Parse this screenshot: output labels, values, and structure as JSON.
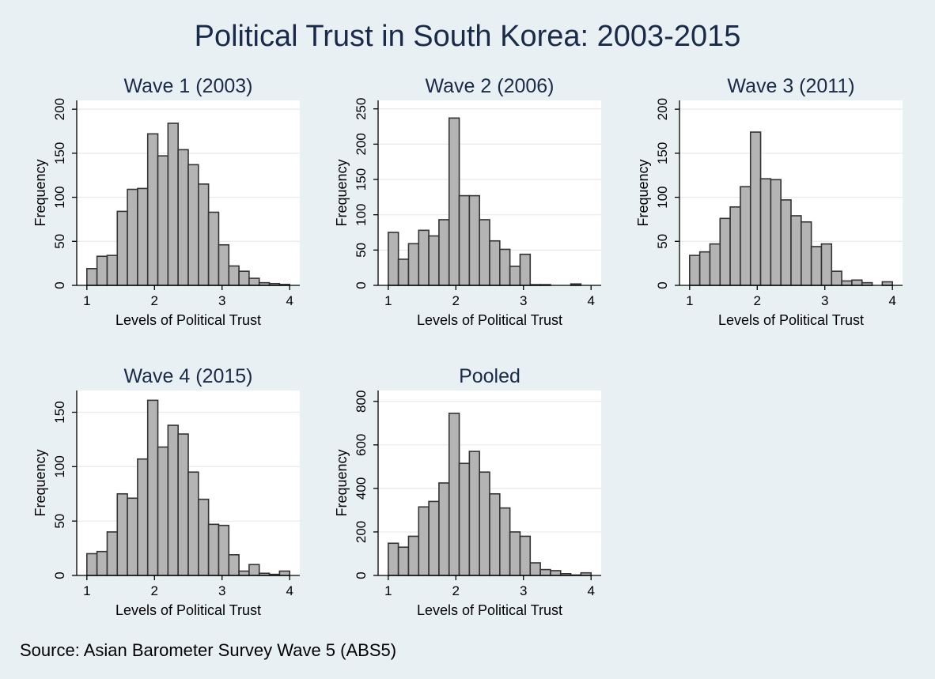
{
  "figure": {
    "title": "Political Trust in South Korea: 2003-2015",
    "source": "Source: Asian Barometer Survey Wave 5 (ABS5)"
  },
  "colors": {
    "background": "#e9f0f3",
    "plot_background": "#ffffff",
    "bar_fill": "#b4b4b4",
    "bar_edge": "#333333",
    "title": "#1a2a4a"
  },
  "chart_data": [
    {
      "type": "bar",
      "id": "w1",
      "title": "Wave 1 (2003)",
      "xlabel": "Levels of Political Trust",
      "ylabel": "Frequency",
      "xlim": [
        0.85,
        4.15
      ],
      "ylim": [
        0,
        210
      ],
      "xticks": [
        1,
        2,
        3,
        4
      ],
      "yticks": [
        0,
        50,
        100,
        150,
        200
      ],
      "bin_start": 1.0,
      "bin_width": 0.15,
      "grid": true,
      "values": [
        19,
        33,
        34,
        84,
        109,
        110,
        172,
        147,
        184,
        154,
        137,
        115,
        83,
        46,
        22,
        16,
        8,
        3,
        2,
        1
      ]
    },
    {
      "type": "bar",
      "id": "w2",
      "title": "Wave 2 (2006)",
      "xlabel": "Levels of Political Trust",
      "ylabel": "Frequency",
      "xlim": [
        0.85,
        4.15
      ],
      "ylim": [
        0,
        262
      ],
      "xticks": [
        1,
        2,
        3,
        4
      ],
      "yticks": [
        0,
        50,
        100,
        150,
        200,
        250
      ],
      "bin_start": 1.0,
      "bin_width": 0.15,
      "grid": true,
      "values": [
        75,
        37,
        59,
        78,
        70,
        93,
        237,
        127,
        127,
        93,
        63,
        51,
        27,
        44,
        1,
        1,
        0,
        0,
        2,
        0
      ]
    },
    {
      "type": "bar",
      "id": "w3",
      "title": "Wave 3 (2011)",
      "xlabel": "Levels of Political Trust",
      "ylabel": "Frequency",
      "xlim": [
        0.85,
        4.15
      ],
      "ylim": [
        0,
        210
      ],
      "xticks": [
        1,
        2,
        3,
        4
      ],
      "yticks": [
        0,
        50,
        100,
        150,
        200
      ],
      "bin_start": 1.0,
      "bin_width": 0.15,
      "grid": true,
      "values": [
        34,
        38,
        47,
        76,
        89,
        112,
        174,
        121,
        120,
        97,
        79,
        72,
        44,
        47,
        16,
        5,
        6,
        3,
        0,
        4
      ]
    },
    {
      "type": "bar",
      "id": "w4",
      "title": "Wave 4 (2015)",
      "xlabel": "Levels of Political Trust",
      "ylabel": "Frequency",
      "xlim": [
        0.85,
        4.15
      ],
      "ylim": [
        0,
        170
      ],
      "xticks": [
        1,
        2,
        3,
        4
      ],
      "yticks": [
        0,
        50,
        100,
        150
      ],
      "bin_start": 1.0,
      "bin_width": 0.15,
      "grid": true,
      "values": [
        20,
        22,
        40,
        75,
        71,
        107,
        161,
        118,
        138,
        130,
        95,
        70,
        47,
        46,
        19,
        4,
        10,
        2,
        1,
        4
      ]
    },
    {
      "type": "bar",
      "id": "pooled",
      "title": "Pooled",
      "xlabel": "Levels of Political Trust",
      "ylabel": "Frequency",
      "xlim": [
        0.85,
        4.15
      ],
      "ylim": [
        0,
        850
      ],
      "xticks": [
        1,
        2,
        3,
        4
      ],
      "yticks": [
        0,
        200,
        400,
        600,
        800
      ],
      "bin_start": 1.0,
      "bin_width": 0.15,
      "grid": true,
      "values": [
        148,
        130,
        180,
        315,
        340,
        425,
        745,
        515,
        570,
        475,
        375,
        310,
        200,
        180,
        58,
        27,
        22,
        8,
        2,
        12
      ]
    }
  ]
}
